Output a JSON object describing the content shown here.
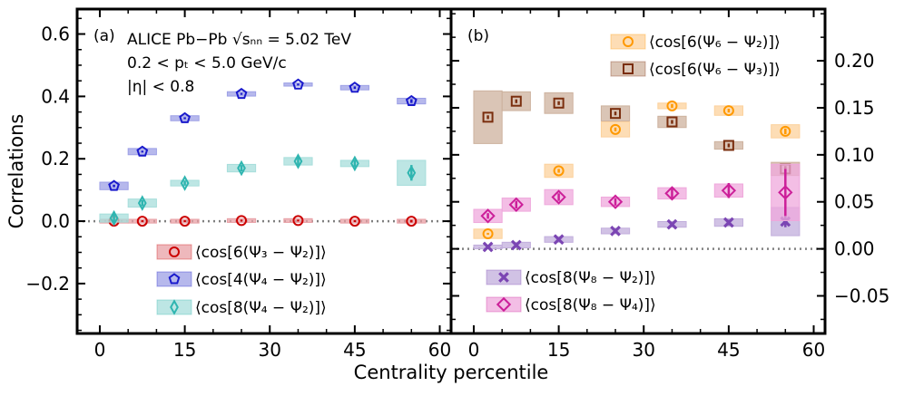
{
  "chart_data": {
    "type": "scatter",
    "xlabel": "Centrality percentile",
    "ylabel": "Correlations",
    "panels": [
      {
        "label": "(a)",
        "xlim": [
          -4,
          62
        ],
        "ylim": [
          -0.36,
          0.68
        ],
        "xticks": [
          0,
          15,
          30,
          45,
          60
        ],
        "yticks": [
          -0.2,
          0.0,
          0.2,
          0.4,
          0.6
        ],
        "ytick_labels": [
          "−0.2",
          "0.0",
          "0.2",
          "0.4",
          "0.6"
        ],
        "ytick_side": "left",
        "minor_y_step": 0.05,
        "annotations": [
          "ALICE Pb−Pb √sₙₙ = 5.02 TeV",
          "0.2 < pₜ < 5.0 GeV/c",
          "|η| < 0.8"
        ],
        "legend_position": "bottom-center",
        "series": [
          {
            "name": "⟨cos[6(Ψ₃ − Ψ₂)]⟩",
            "marker": "circle",
            "color": "#cc0000",
            "box_color": "#e8a0a6",
            "x": [
              2.5,
              7.5,
              15,
              25,
              35,
              45,
              55
            ],
            "y": [
              0.0,
              0.0,
              0.0,
              0.002,
              0.002,
              0.0,
              0.0
            ],
            "sys": [
              0.006,
              0.006,
              0.006,
              0.006,
              0.006,
              0.006,
              0.006
            ],
            "stat": [
              0.003,
              0.003,
              0.003,
              0.003,
              0.003,
              0.003,
              0.004
            ]
          },
          {
            "name": "⟨cos[4(Ψ₄ − Ψ₂)]⟩",
            "marker": "pentagon",
            "color": "#1a1acc",
            "box_color": "#9da0e6",
            "x": [
              2.5,
              7.5,
              15,
              25,
              35,
              45,
              55
            ],
            "y": [
              0.113,
              0.223,
              0.33,
              0.408,
              0.438,
              0.428,
              0.385
            ],
            "sys": [
              0.012,
              0.01,
              0.008,
              0.007,
              0.005,
              0.007,
              0.009
            ],
            "stat": [
              0.004,
              0.003,
              0.003,
              0.003,
              0.003,
              0.004,
              0.006
            ]
          },
          {
            "name": "⟨cos[8(Ψ₄ − Ψ₂)]⟩",
            "marker": "thin-diamond",
            "color": "#2fb5b0",
            "box_color": "#a7dedb",
            "x": [
              2.5,
              7.5,
              15,
              25,
              35,
              45,
              55
            ],
            "y": [
              0.01,
              0.058,
              0.122,
              0.17,
              0.192,
              0.185,
              0.155
            ],
            "sys": [
              0.013,
              0.013,
              0.009,
              0.012,
              0.012,
              0.01,
              0.04
            ],
            "stat": [
              0.02,
              0.01,
              0.008,
              0.01,
              0.013,
              0.012,
              0.025
            ]
          }
        ]
      },
      {
        "label": "(b)",
        "xlim": [
          -4,
          62
        ],
        "ylim": [
          -0.09,
          0.255
        ],
        "xticks": [
          0,
          15,
          30,
          45,
          60
        ],
        "yticks": [
          -0.05,
          0.0,
          0.05,
          0.1,
          0.15,
          0.2
        ],
        "ytick_labels": [
          "−0.05",
          "0.00",
          "0.05",
          "0.10",
          "0.15",
          "0.20"
        ],
        "ytick_side": "right",
        "minor_y_step": 0.025,
        "legend_position": "top-right and bottom-left",
        "series": [
          {
            "name": "⟨cos[6(Ψ₆ − Ψ₂)]⟩",
            "marker": "circle",
            "color": "#ff9900",
            "box_color": "#fcd19c",
            "x": [
              2.5,
              15,
              25,
              35,
              45,
              55
            ],
            "y": [
              0.016,
              0.083,
              0.127,
              0.152,
              0.147,
              0.125
            ],
            "sys": [
              0.005,
              0.007,
              0.008,
              0.003,
              0.005,
              0.007
            ],
            "stat": [
              0.001,
              0.002,
              0.002,
              0.002,
              0.002,
              0.003
            ]
          },
          {
            "name": "⟨cos[6(Ψ₆ − Ψ₃)]⟩",
            "marker": "square",
            "color": "#7a2e0e",
            "box_color": "#cdb29e",
            "x": [
              2.5,
              7.5,
              15,
              25,
              35,
              45,
              55
            ],
            "y": [
              0.14,
              0.157,
              0.155,
              0.144,
              0.135,
              0.11,
              0.085
            ],
            "sys": [
              0.028,
              0.01,
              0.011,
              0.008,
              0.006,
              0.004,
              0.007
            ],
            "stat": [
              0.002,
              0.002,
              0.002,
              0.002,
              0.002,
              0.002,
              0.003
            ]
          },
          {
            "name": "⟨cos[8(Ψ₈ − Ψ₂)]⟩",
            "marker": "x",
            "color": "#7b45b3",
            "box_color": "#c2aedc",
            "x": [
              2.5,
              7.5,
              15,
              25,
              35,
              45,
              55
            ],
            "y": [
              0.002,
              0.004,
              0.01,
              0.019,
              0.026,
              0.028,
              0.029
            ],
            "sys": [
              0.002,
              0.003,
              0.003,
              0.003,
              0.003,
              0.004,
              0.015
            ],
            "stat": [
              0.001,
              0.001,
              0.001,
              0.002,
              0.002,
              0.003,
              0.006
            ]
          },
          {
            "name": "⟨cos[8(Ψ₈ − Ψ₄)]⟩",
            "marker": "diamond",
            "color": "#cc1f99",
            "box_color": "#efa8dc",
            "x": [
              2.5,
              7.5,
              15,
              25,
              35,
              45,
              55
            ],
            "y": [
              0.035,
              0.047,
              0.055,
              0.05,
              0.059,
              0.062,
              0.06
            ],
            "sys": [
              0.007,
              0.007,
              0.008,
              0.005,
              0.006,
              0.007,
              0.03
            ],
            "stat": [
              0.003,
              0.004,
              0.004,
              0.004,
              0.005,
              0.008,
              0.025
            ]
          }
        ]
      }
    ]
  }
}
